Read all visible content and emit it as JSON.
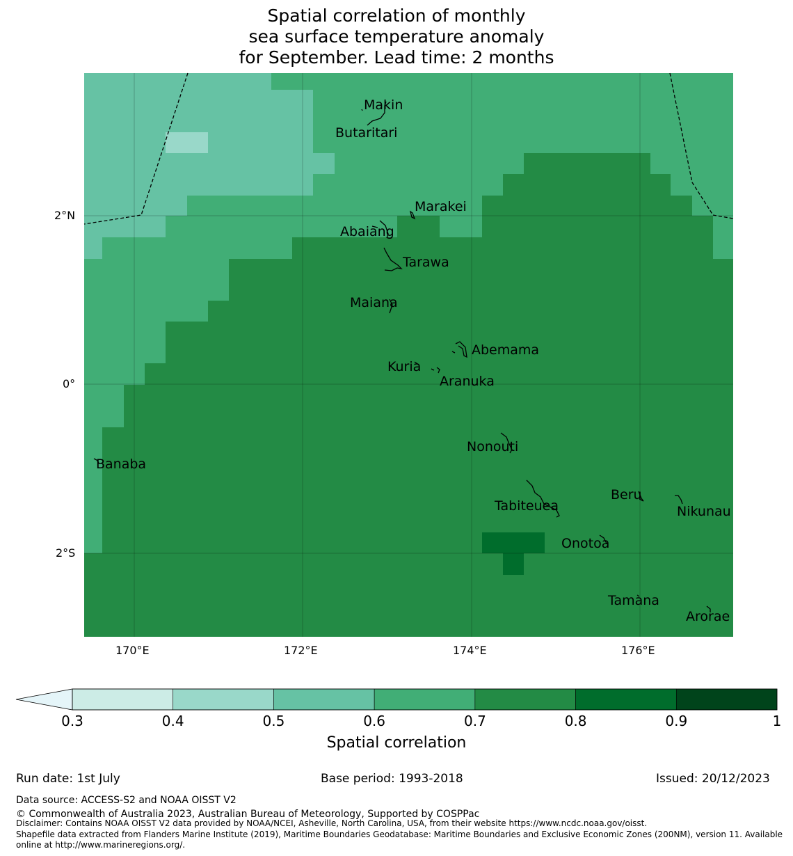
{
  "title": {
    "line1": "Spatial correlation of monthly",
    "line2": "sea surface temperature anomaly",
    "line3": "for September. Lead time: 2 months"
  },
  "axes": {
    "y_ticks": [
      "2°N",
      "0°",
      "2°S"
    ],
    "x_ticks": [
      "170°E",
      "172°E",
      "174°E",
      "176°E"
    ]
  },
  "places": [
    {
      "name": "Makin"
    },
    {
      "name": "Butaritari"
    },
    {
      "name": "Marakei"
    },
    {
      "name": "Abaiang"
    },
    {
      "name": "Tarawa"
    },
    {
      "name": "Maiana"
    },
    {
      "name": "Abemama"
    },
    {
      "name": "Kuria"
    },
    {
      "name": "Aranuka"
    },
    {
      "name": "Nonouti"
    },
    {
      "name": "Banaba"
    },
    {
      "name": "Beru"
    },
    {
      "name": "Nikunau"
    },
    {
      "name": "Tabiteuea"
    },
    {
      "name": "Onotoa"
    },
    {
      "name": "Tamana"
    },
    {
      "name": "Arorae"
    }
  ],
  "colorbar": {
    "label": "Spatial correlation",
    "ticks": [
      "0.3",
      "0.4",
      "0.5",
      "0.6",
      "0.7",
      "0.8",
      "0.9",
      "1"
    ],
    "colors": [
      "#e5f5f9",
      "#ccece6",
      "#99d8c9",
      "#66c2a4",
      "#41ae76",
      "#238b45",
      "#006d2c",
      "#00441b"
    ]
  },
  "footer": {
    "run_date": "Run date: 1st July",
    "base_period": "Base period: 1993-2018",
    "issued": "Issued: 20/12/2023",
    "data_source": "Data source: ACCESS-S2 and NOAA OISST V2",
    "copyright": "© Commonwealth of Australia 2023, Australian Bureau of Meteorology, Supported by COSPPac",
    "disclaimer": "Disclaimer: Contains NOAA OISST V2 data provided by NOAA/NCEI, Asheville, North Carolina, USA, from their website https://www.ncdc.noaa.gov/oisst.",
    "shapefile1": "Shapefile data extracted from Flanders Marine Institute (2019), Maritime Boundaries Geodatabase: Maritime Boundaries and Exclusive Economic Zones (200NM), version 11. Available",
    "shapefile2": "online at http://www.marineregions.org/."
  }
}
